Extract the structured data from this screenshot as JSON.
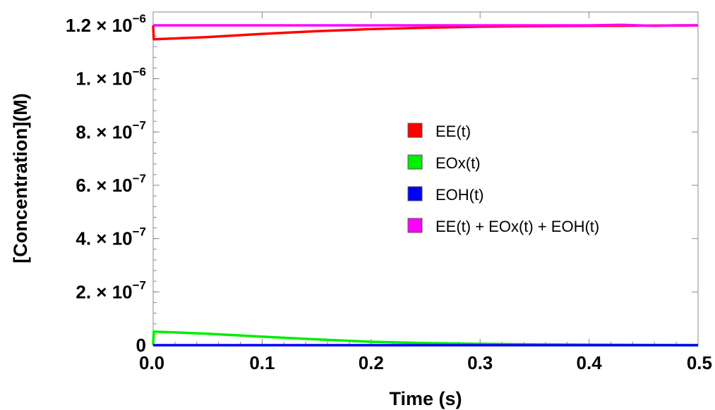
{
  "chart_data": {
    "type": "line",
    "xlabel": "Time (s)",
    "ylabel": "[Concentration](M)",
    "xlim": [
      0,
      0.5
    ],
    "ylim": [
      0,
      1.2e-06
    ],
    "x_ticks": [
      {
        "value": 0.0,
        "label": "0.0"
      },
      {
        "value": 0.1,
        "label": "0.1"
      },
      {
        "value": 0.2,
        "label": "0.2"
      },
      {
        "value": 0.3,
        "label": "0.3"
      },
      {
        "value": 0.4,
        "label": "0.4"
      },
      {
        "value": 0.5,
        "label": "0.5"
      }
    ],
    "y_ticks": [
      {
        "value": 0,
        "mant": "0",
        "exp": ""
      },
      {
        "value": 2e-07,
        "mant": "2. × 10",
        "exp": "−7"
      },
      {
        "value": 4e-07,
        "mant": "4. × 10",
        "exp": "−7"
      },
      {
        "value": 6e-07,
        "mant": "6. × 10",
        "exp": "−7"
      },
      {
        "value": 8e-07,
        "mant": "8. × 10",
        "exp": "−7"
      },
      {
        "value": 1e-06,
        "mant": "1. × 10",
        "exp": "−6"
      },
      {
        "value": 1.2e-06,
        "mant": "1.2 × 10",
        "exp": "−6"
      }
    ],
    "grid": false,
    "legend_position": "center-right",
    "series": [
      {
        "name": "EE(t)",
        "color": "#ff0000",
        "x": [
          0,
          0.0005,
          0.05,
          0.1,
          0.15,
          0.2,
          0.25,
          0.3,
          0.35,
          0.4,
          0.45,
          0.5
        ],
        "y": [
          1.2e-06,
          1.148e-06,
          1.156e-06,
          1.168e-06,
          1.178e-06,
          1.186e-06,
          1.191e-06,
          1.195e-06,
          1.197e-06,
          1.198e-06,
          1.199e-06,
          1.2e-06
        ]
      },
      {
        "name": "EOx(t)",
        "color": "#00ee00",
        "x": [
          0,
          0.0005,
          0.05,
          0.1,
          0.15,
          0.2,
          0.25,
          0.3,
          0.35,
          0.4,
          0.45,
          0.5
        ],
        "y": [
          0,
          5.1e-08,
          4.3e-08,
          3.2e-08,
          2.2e-08,
          1.3e-08,
          8e-09,
          5e-09,
          3e-09,
          2e-09,
          1e-09,
          0
        ]
      },
      {
        "name": "EOH(t)",
        "color": "#0000ff",
        "x": [
          0,
          0.1,
          0.2,
          0.3,
          0.4,
          0.5
        ],
        "y": [
          0,
          0,
          0,
          0,
          0,
          0
        ]
      },
      {
        "name": "EE(t) + EOx(t) + EOH(t)",
        "color": "#ff00ff",
        "x": [
          0,
          0.1,
          0.2,
          0.3,
          0.4,
          0.43,
          0.46,
          0.48,
          0.5
        ],
        "y": [
          1.2e-06,
          1.2e-06,
          1.2e-06,
          1.2e-06,
          1.2e-06,
          1.202e-06,
          1.198e-06,
          1.2e-06,
          1.2e-06
        ]
      }
    ]
  }
}
